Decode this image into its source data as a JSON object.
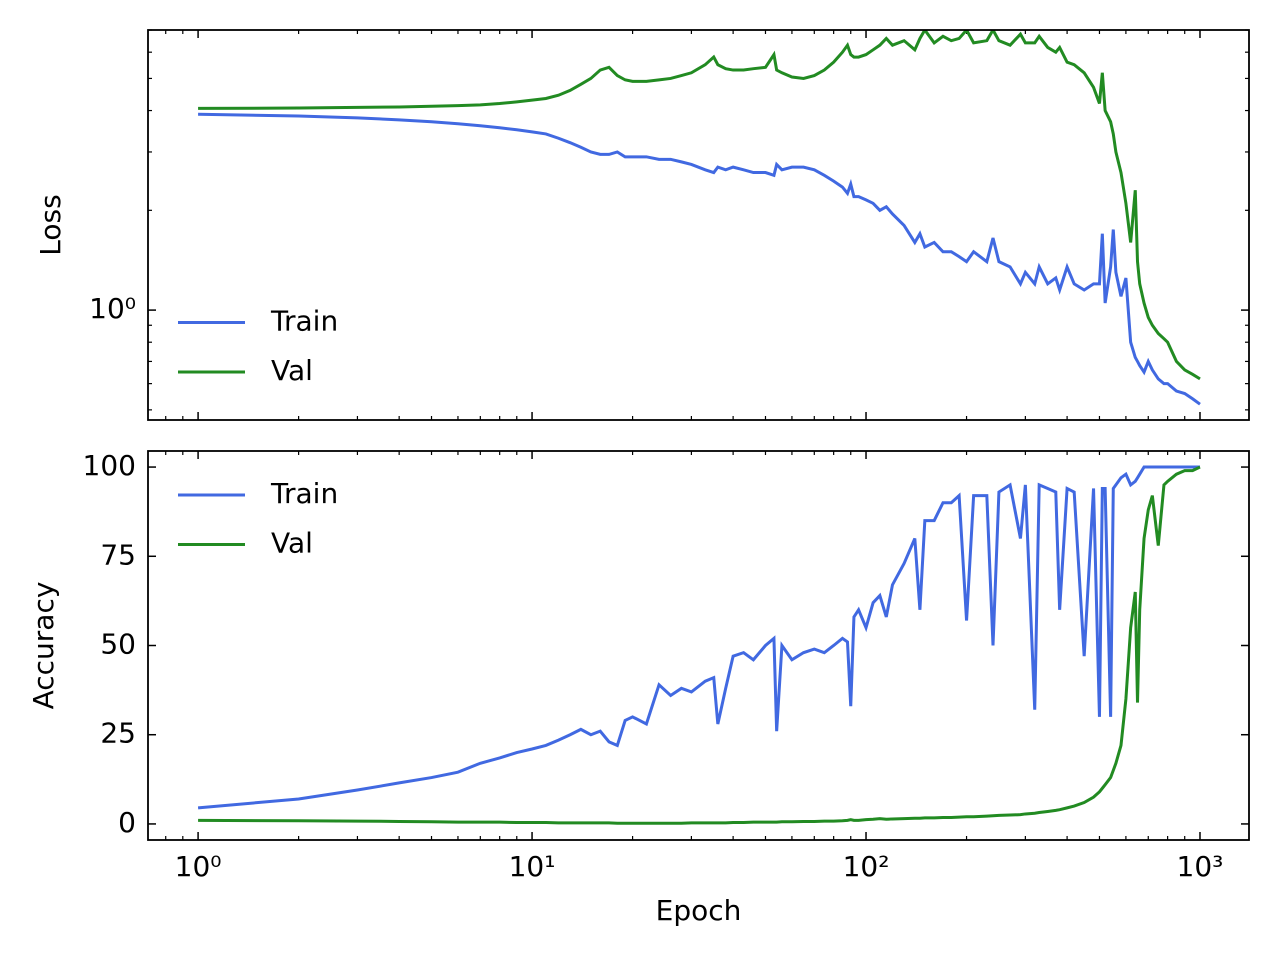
{
  "chart_data": [
    {
      "type": "line",
      "ylabel": "Loss",
      "yscale": "log",
      "xscale": "log",
      "legend": "lower left",
      "ylim": [
        0.466,
        7.0
      ],
      "yticks": [
        {
          "value": 1,
          "label": "10⁰"
        }
      ],
      "x": [
        1,
        2,
        3,
        4,
        5,
        6,
        7,
        8,
        9,
        10,
        11,
        12,
        13,
        14,
        15,
        16,
        17,
        18,
        19,
        20,
        22,
        24,
        26,
        28,
        30,
        33,
        35,
        36,
        38,
        40,
        43,
        46,
        50,
        53,
        54,
        56,
        60,
        65,
        70,
        75,
        80,
        85,
        88,
        90,
        92,
        95,
        100,
        105,
        110,
        115,
        120,
        130,
        140,
        145,
        150,
        160,
        170,
        180,
        190,
        200,
        210,
        230,
        240,
        250,
        270,
        290,
        300,
        320,
        330,
        350,
        370,
        380,
        400,
        420,
        450,
        480,
        500,
        510,
        520,
        540,
        550,
        560,
        580,
        600,
        620,
        640,
        650,
        660,
        680,
        700,
        720,
        750,
        780,
        800,
        850,
        900,
        950,
        1000
      ],
      "series": [
        {
          "name": "Train",
          "color": "#4169e1",
          "values": [
            3.9,
            3.85,
            3.8,
            3.75,
            3.7,
            3.65,
            3.6,
            3.55,
            3.5,
            3.45,
            3.4,
            3.3,
            3.2,
            3.1,
            3.0,
            2.95,
            2.95,
            3.0,
            2.9,
            2.9,
            2.9,
            2.85,
            2.85,
            2.8,
            2.75,
            2.65,
            2.6,
            2.7,
            2.65,
            2.7,
            2.65,
            2.6,
            2.6,
            2.55,
            2.75,
            2.65,
            2.7,
            2.7,
            2.65,
            2.55,
            2.45,
            2.35,
            2.25,
            2.4,
            2.2,
            2.2,
            2.15,
            2.1,
            2.0,
            2.05,
            1.95,
            1.8,
            1.6,
            1.7,
            1.55,
            1.6,
            1.5,
            1.5,
            1.45,
            1.4,
            1.5,
            1.4,
            1.65,
            1.4,
            1.35,
            1.2,
            1.3,
            1.2,
            1.35,
            1.2,
            1.25,
            1.15,
            1.35,
            1.2,
            1.15,
            1.2,
            1.2,
            1.7,
            1.05,
            1.35,
            1.75,
            1.3,
            1.1,
            1.25,
            0.8,
            0.72,
            0.7,
            0.68,
            0.65,
            0.7,
            0.66,
            0.62,
            0.6,
            0.6,
            0.57,
            0.56,
            0.54,
            0.52
          ]
        },
        {
          "name": "Val",
          "color": "#228b22",
          "values": [
            4.06,
            4.07,
            4.09,
            4.1,
            4.12,
            4.14,
            4.16,
            4.2,
            4.25,
            4.3,
            4.35,
            4.45,
            4.6,
            4.8,
            5.0,
            5.3,
            5.4,
            5.1,
            4.95,
            4.9,
            4.9,
            4.95,
            5.0,
            5.1,
            5.2,
            5.5,
            5.8,
            5.5,
            5.35,
            5.3,
            5.3,
            5.35,
            5.4,
            5.9,
            5.3,
            5.2,
            5.05,
            5.0,
            5.1,
            5.3,
            5.6,
            6.0,
            6.3,
            5.9,
            5.8,
            5.8,
            5.9,
            6.1,
            6.3,
            6.6,
            6.3,
            6.5,
            6.1,
            6.6,
            7.0,
            6.4,
            6.7,
            6.5,
            6.6,
            7.0,
            6.4,
            6.5,
            7.0,
            6.5,
            6.3,
            6.8,
            6.4,
            6.4,
            6.7,
            6.2,
            6.0,
            6.2,
            5.6,
            5.5,
            5.2,
            4.7,
            4.2,
            5.2,
            4.0,
            3.7,
            3.4,
            3.0,
            2.6,
            2.1,
            1.6,
            2.3,
            1.4,
            1.2,
            1.05,
            0.95,
            0.9,
            0.85,
            0.82,
            0.8,
            0.7,
            0.66,
            0.64,
            0.62
          ]
        }
      ]
    },
    {
      "type": "line",
      "ylabel": "Accuracy",
      "xlabel": "Epoch",
      "xscale": "log",
      "legend": "upper left",
      "xlim": [
        0.708,
        1402
      ],
      "xticks": [
        {
          "value": 1,
          "label": "10⁰"
        },
        {
          "value": 10,
          "label": "10¹"
        },
        {
          "value": 100,
          "label": "10²"
        },
        {
          "value": 1000,
          "label": "10³"
        }
      ],
      "ylim": [
        -4.5,
        104.5
      ],
      "yticks": [
        0,
        25,
        50,
        75,
        100
      ],
      "x": [
        1,
        2,
        3,
        4,
        5,
        6,
        7,
        8,
        9,
        10,
        11,
        12,
        13,
        14,
        15,
        16,
        17,
        18,
        19,
        20,
        22,
        24,
        26,
        28,
        30,
        33,
        35,
        36,
        38,
        40,
        43,
        46,
        50,
        53,
        54,
        56,
        60,
        65,
        70,
        75,
        80,
        85,
        88,
        90,
        92,
        95,
        100,
        105,
        110,
        115,
        120,
        130,
        140,
        145,
        150,
        160,
        170,
        180,
        190,
        200,
        210,
        230,
        240,
        250,
        270,
        290,
        300,
        320,
        330,
        350,
        370,
        380,
        400,
        420,
        450,
        480,
        500,
        510,
        520,
        540,
        550,
        560,
        580,
        600,
        620,
        640,
        650,
        660,
        680,
        700,
        720,
        750,
        780,
        800,
        850,
        900,
        950,
        1000
      ],
      "series": [
        {
          "name": "Train",
          "color": "#4169e1",
          "values": [
            4.5,
            7,
            9.5,
            11.5,
            13,
            14.5,
            17,
            18.5,
            20,
            21,
            22,
            23.5,
            25,
            26.5,
            25,
            26,
            23,
            22,
            29,
            30,
            28,
            39,
            36,
            38,
            37,
            40,
            41,
            28,
            38,
            47,
            48,
            46,
            50,
            52,
            26,
            50,
            46,
            48,
            49,
            48,
            50,
            52,
            51,
            33,
            58,
            60,
            55,
            62,
            64,
            58,
            67,
            73,
            80,
            60,
            85,
            85,
            90,
            90,
            92,
            57,
            92,
            92,
            50,
            93,
            95,
            80,
            95,
            32,
            95,
            94,
            93,
            60,
            94,
            93,
            47,
            94,
            30,
            94,
            94,
            30,
            94,
            95,
            97,
            98,
            95,
            96,
            97,
            98,
            100,
            100,
            100,
            100,
            100,
            100,
            100,
            100,
            100,
            100
          ]
        },
        {
          "name": "Val",
          "color": "#228b22",
          "values": [
            1,
            0.9,
            0.8,
            0.7,
            0.6,
            0.5,
            0.5,
            0.5,
            0.4,
            0.4,
            0.4,
            0.3,
            0.3,
            0.3,
            0.3,
            0.3,
            0.3,
            0.2,
            0.2,
            0.2,
            0.2,
            0.2,
            0.2,
            0.2,
            0.3,
            0.3,
            0.3,
            0.3,
            0.3,
            0.4,
            0.4,
            0.5,
            0.5,
            0.5,
            0.5,
            0.6,
            0.6,
            0.7,
            0.7,
            0.8,
            0.8,
            0.9,
            1,
            1.2,
            1,
            1,
            1.2,
            1.3,
            1.5,
            1.3,
            1.4,
            1.5,
            1.6,
            1.6,
            1.7,
            1.7,
            1.8,
            1.8,
            1.9,
            2,
            2,
            2.2,
            2.3,
            2.4,
            2.5,
            2.6,
            2.8,
            3,
            3.2,
            3.5,
            3.8,
            4,
            4.5,
            5,
            6,
            7.5,
            9,
            10,
            11,
            13,
            15,
            17,
            22,
            35,
            55,
            65,
            34,
            60,
            80,
            88,
            92,
            78,
            95,
            96,
            98,
            99,
            99,
            100
          ]
        }
      ]
    }
  ]
}
